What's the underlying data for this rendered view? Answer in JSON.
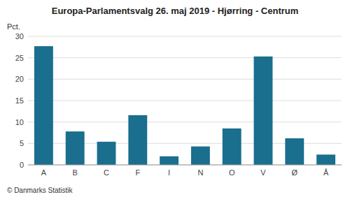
{
  "chart_data": {
    "type": "bar",
    "title": "Europa-Parlamentsvalg 26. maj 2019 - Hjørring - Centrum",
    "categories": [
      "A",
      "B",
      "C",
      "F",
      "I",
      "N",
      "O",
      "V",
      "Ø",
      "Å"
    ],
    "values": [
      27.7,
      7.8,
      5.4,
      11.6,
      2.0,
      4.3,
      8.5,
      25.3,
      6.2,
      2.4
    ],
    "color": "#1a6e8e",
    "ylabel": "Pct.",
    "footer": "© Danmarks Statistik",
    "ylim": [
      0,
      30
    ],
    "yticks": [
      0,
      5,
      10,
      15,
      20,
      25,
      30
    ],
    "grid": true
  }
}
